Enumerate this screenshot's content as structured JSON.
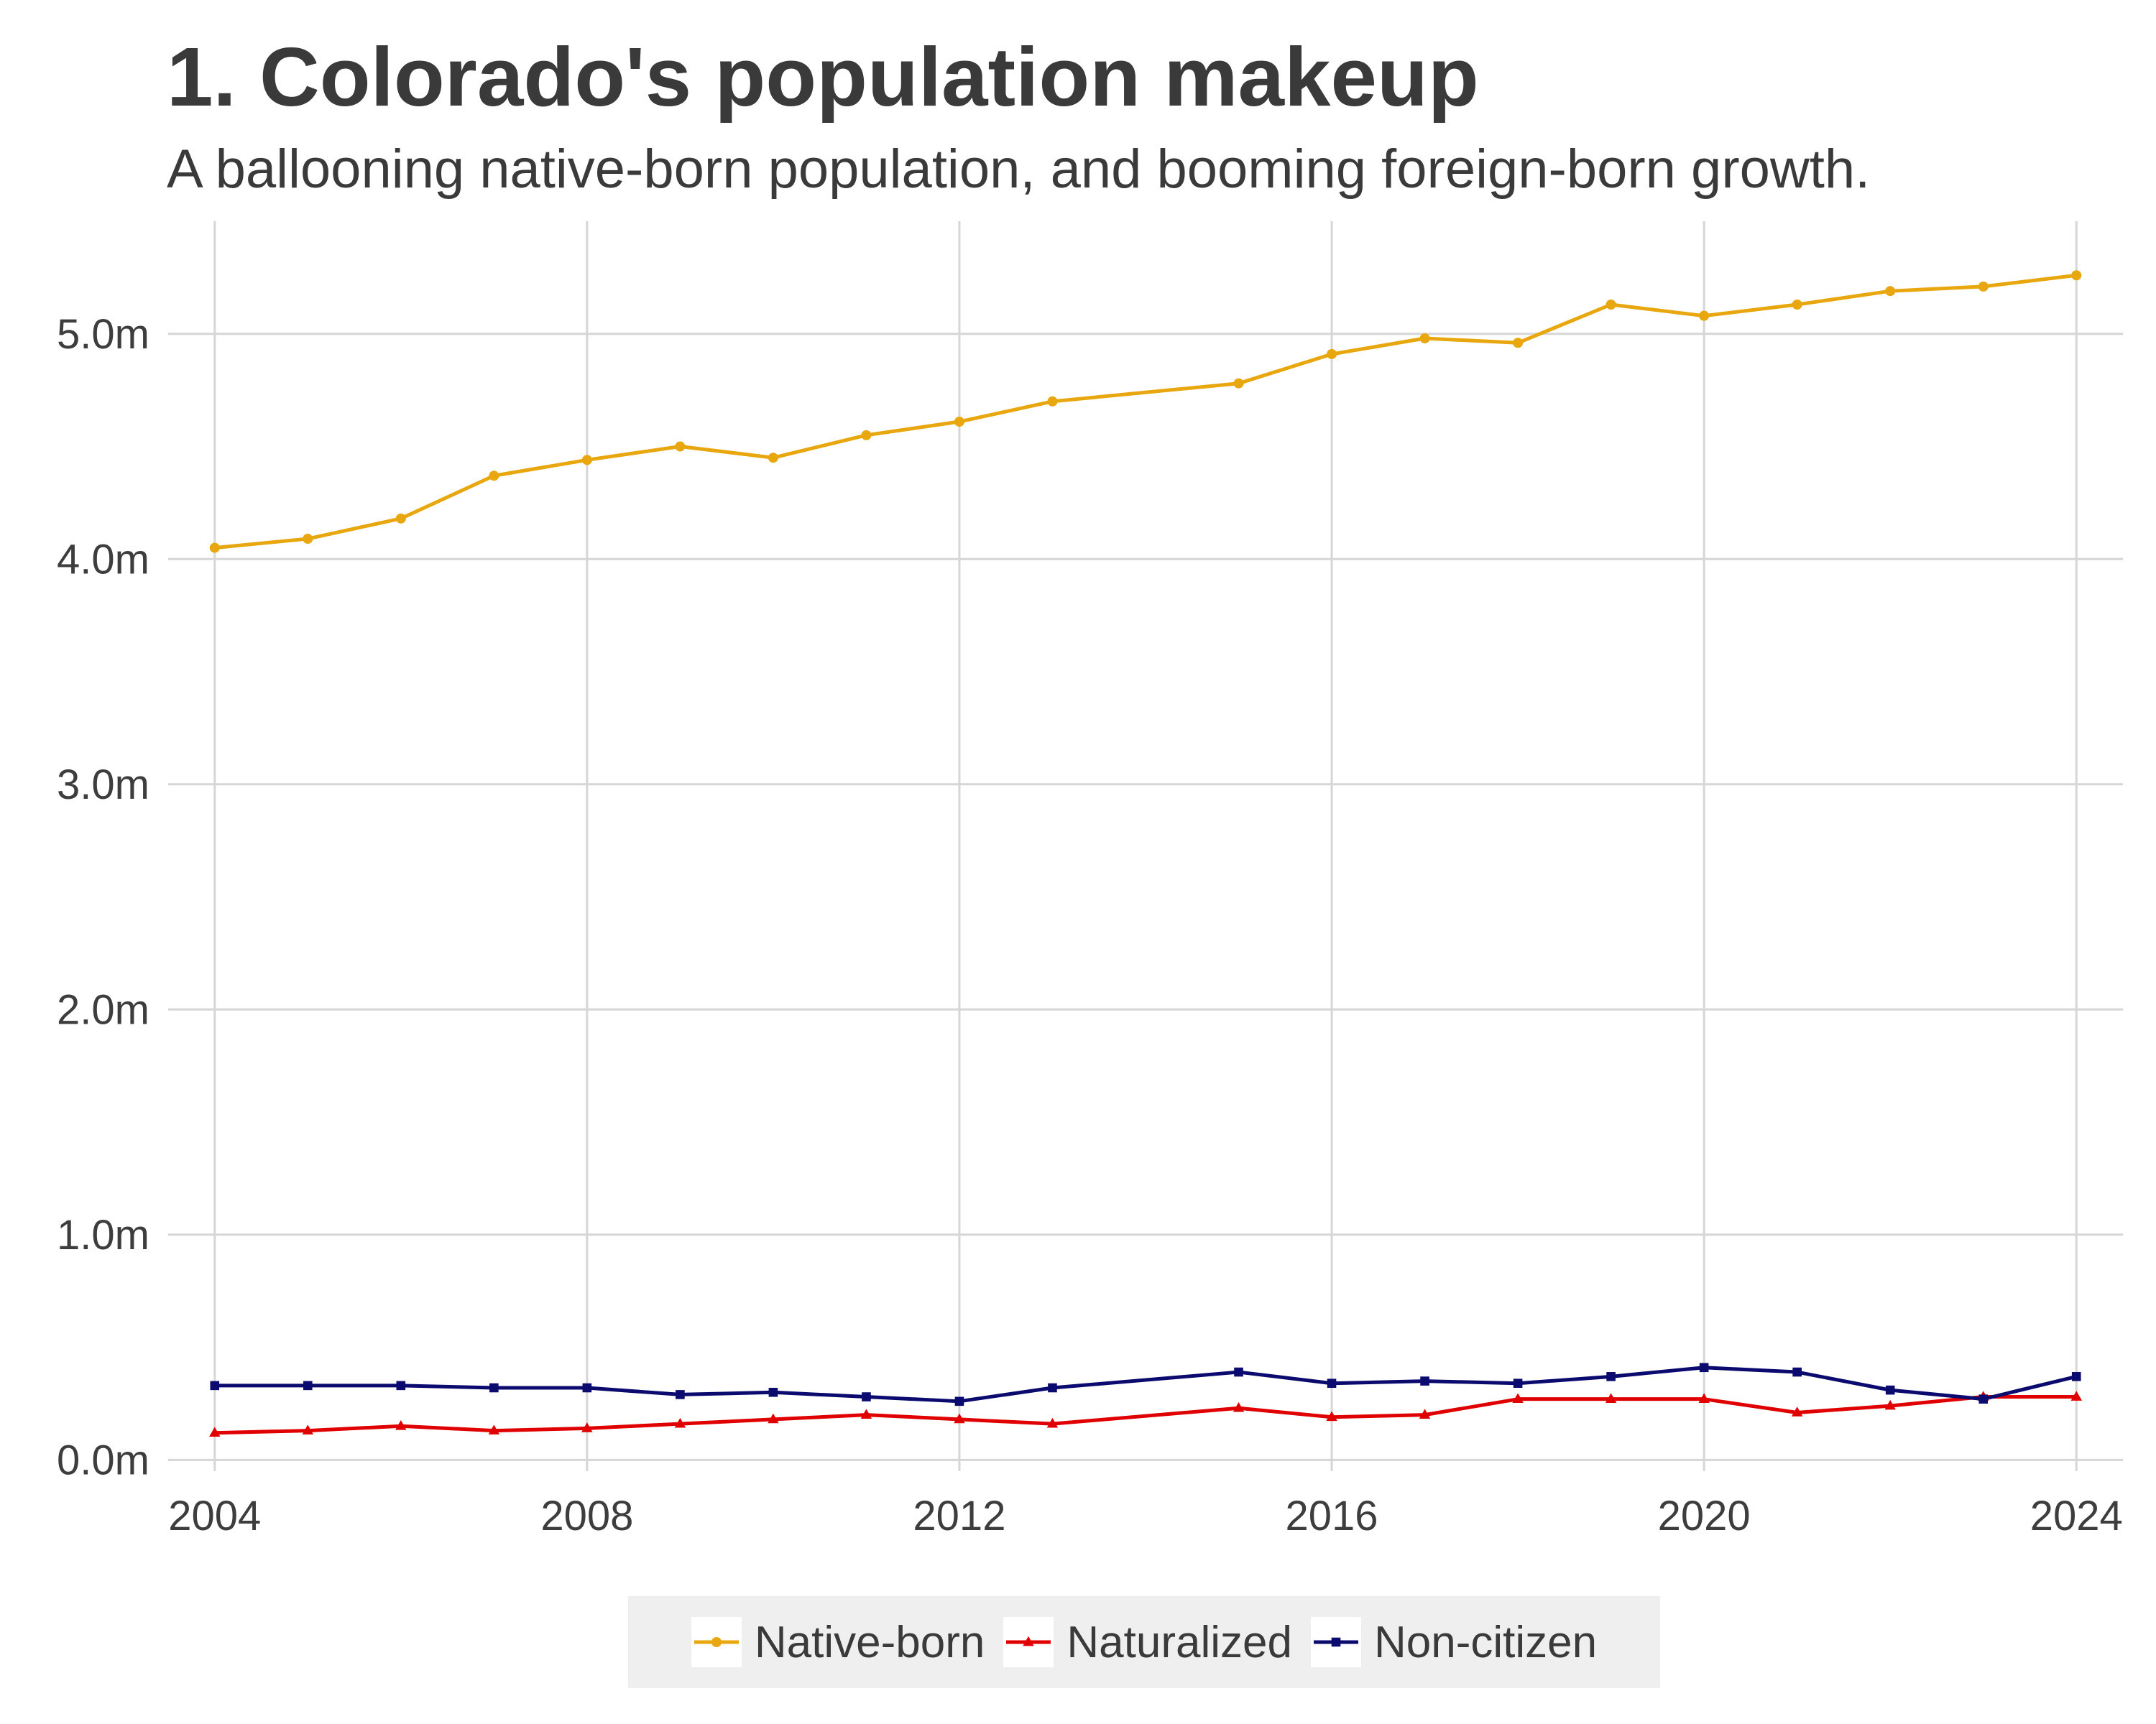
{
  "chart_data": {
    "type": "line",
    "title": "1. Colorado's population makeup",
    "subtitle": "A ballooning native-born population, and booming foreign-born growth.",
    "xlabel": "",
    "ylabel": "",
    "xlim": [
      2003.5,
      2024.5
    ],
    "ylim": [
      -0.05,
      5.5
    ],
    "x_ticks": [
      2004,
      2008,
      2012,
      2016,
      2020,
      2024
    ],
    "y_ticks": [
      0,
      1,
      2,
      3,
      4,
      5
    ],
    "y_tick_labels": [
      "0.0m",
      "1.0m",
      "2.0m",
      "3.0m",
      "4.0m",
      "5.0m"
    ],
    "grid": true,
    "legend_position": "bottom",
    "series": [
      {
        "name": "Native-born",
        "color": "#e8a70f",
        "marker": "circle",
        "x": [
          2004,
          2005,
          2006,
          2007,
          2008,
          2009,
          2010,
          2011,
          2012,
          2013,
          2015,
          2016,
          2017,
          2018,
          2019,
          2020,
          2021,
          2022,
          2023,
          2024
        ],
        "values": [
          4.05,
          4.09,
          4.18,
          4.37,
          4.44,
          4.5,
          4.45,
          4.55,
          4.61,
          4.7,
          4.78,
          4.91,
          4.98,
          4.96,
          5.13,
          5.08,
          5.13,
          5.19,
          5.21,
          5.26
        ]
      },
      {
        "name": "Naturalized",
        "color": "#e00000",
        "marker": "triangle",
        "x": [
          2004,
          2005,
          2006,
          2007,
          2008,
          2009,
          2010,
          2011,
          2012,
          2013,
          2015,
          2016,
          2017,
          2018,
          2019,
          2020,
          2021,
          2022,
          2023,
          2024
        ],
        "values": [
          0.12,
          0.13,
          0.15,
          0.13,
          0.14,
          0.16,
          0.18,
          0.2,
          0.18,
          0.16,
          0.23,
          0.19,
          0.2,
          0.27,
          0.27,
          0.27,
          0.21,
          0.24,
          0.28,
          0.28
        ]
      },
      {
        "name": "Non-citizen",
        "color": "#0b0b6f",
        "marker": "square",
        "x": [
          2004,
          2005,
          2006,
          2007,
          2008,
          2009,
          2010,
          2011,
          2012,
          2013,
          2015,
          2016,
          2017,
          2018,
          2019,
          2020,
          2021,
          2022,
          2023,
          2024
        ],
        "values": [
          0.33,
          0.33,
          0.33,
          0.32,
          0.32,
          0.29,
          0.3,
          0.28,
          0.26,
          0.32,
          0.39,
          0.34,
          0.35,
          0.34,
          0.37,
          0.41,
          0.39,
          0.31,
          0.27,
          0.37
        ]
      }
    ]
  }
}
